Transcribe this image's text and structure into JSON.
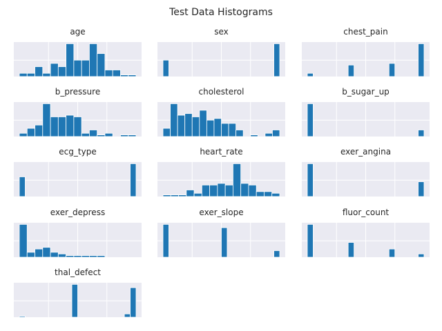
{
  "figure_title": "Test Data Histograms",
  "chart_data": [
    {
      "type": "bar",
      "title": "age",
      "values": [
        1,
        1,
        3,
        1,
        4,
        3,
        10,
        5,
        5,
        10,
        7,
        2,
        2,
        0.5,
        0.5
      ],
      "ylim": [
        0,
        10.5
      ]
    },
    {
      "type": "bar",
      "title": "sex",
      "values": [
        5,
        0,
        0,
        0,
        0,
        0,
        0,
        0,
        0,
        0,
        0,
        0,
        0,
        0,
        0,
        0,
        0,
        0,
        0,
        10
      ],
      "ylim": [
        0,
        10.5
      ]
    },
    {
      "type": "bar",
      "title": "chest_pain",
      "values": [
        1,
        0,
        0,
        0,
        0,
        0,
        0,
        3.5,
        0,
        0,
        0,
        0,
        0,
        0,
        4,
        0,
        0,
        0,
        0,
        10
      ],
      "ylim": [
        0,
        10.5
      ]
    },
    {
      "type": "bar",
      "title": "b_pressure",
      "values": [
        1,
        2.5,
        3.5,
        10,
        6,
        6,
        6.5,
        6,
        1,
        2,
        0.5,
        1,
        0,
        0.5,
        0.5
      ],
      "ylim": [
        0,
        10.5
      ]
    },
    {
      "type": "bar",
      "title": "cholesterol",
      "values": [
        2.5,
        10,
        6.5,
        7,
        6,
        8,
        5,
        5.5,
        4,
        4,
        2,
        0,
        0.5,
        0,
        1,
        2
      ],
      "ylim": [
        0,
        10.5
      ]
    },
    {
      "type": "bar",
      "title": "b_sugar_up",
      "values": [
        10,
        0,
        0,
        0,
        0,
        0,
        0,
        0,
        0,
        0,
        0,
        0,
        0,
        0,
        0,
        0,
        0,
        0,
        0,
        2
      ],
      "ylim": [
        0,
        10.5
      ]
    },
    {
      "type": "bar",
      "title": "ecg_type",
      "values": [
        6,
        0,
        0,
        0,
        0,
        0,
        0,
        0,
        0,
        0,
        0,
        0,
        0,
        0,
        0,
        0,
        0,
        0,
        0,
        10
      ],
      "ylim": [
        0,
        10.5
      ]
    },
    {
      "type": "bar",
      "title": "heart_rate",
      "values": [
        0.5,
        0.5,
        0.5,
        2,
        1,
        3.5,
        3.5,
        4,
        3.5,
        10,
        4,
        3.5,
        1.5,
        1.5,
        1
      ],
      "ylim": [
        0,
        10.5
      ]
    },
    {
      "type": "bar",
      "title": "exer_angina",
      "values": [
        10,
        0,
        0,
        0,
        0,
        0,
        0,
        0,
        0,
        0,
        0,
        0,
        0,
        0,
        0,
        0,
        0,
        0,
        0,
        4.5
      ],
      "ylim": [
        0,
        10.5
      ]
    },
    {
      "type": "bar",
      "title": "exer_depress",
      "values": [
        10,
        1.5,
        2.5,
        3,
        1.5,
        1,
        0.5,
        0.5,
        0.5,
        0.5,
        0.5,
        0,
        0,
        0,
        0
      ],
      "ylim": [
        0,
        10.5
      ]
    },
    {
      "type": "bar",
      "title": "exer_slope",
      "values": [
        10,
        0,
        0,
        0,
        0,
        0,
        0,
        0,
        0,
        0,
        9,
        0,
        0,
        0,
        0,
        0,
        0,
        0,
        0,
        2
      ],
      "ylim": [
        0,
        10.5
      ]
    },
    {
      "type": "bar",
      "title": "fluor_count",
      "values": [
        10,
        0,
        0,
        0,
        0,
        0,
        0,
        4.5,
        0,
        0,
        0,
        0,
        0,
        0,
        2.5,
        0,
        0,
        0,
        0,
        1
      ],
      "ylim": [
        0,
        10.5
      ]
    },
    {
      "type": "bar",
      "title": "thal_defect",
      "values": [
        0.3,
        0,
        0,
        0,
        0,
        0,
        0,
        0,
        0,
        10,
        0,
        0,
        0,
        0,
        0,
        0,
        0,
        0,
        1,
        9
      ],
      "ylim": [
        0,
        10.5
      ]
    }
  ]
}
